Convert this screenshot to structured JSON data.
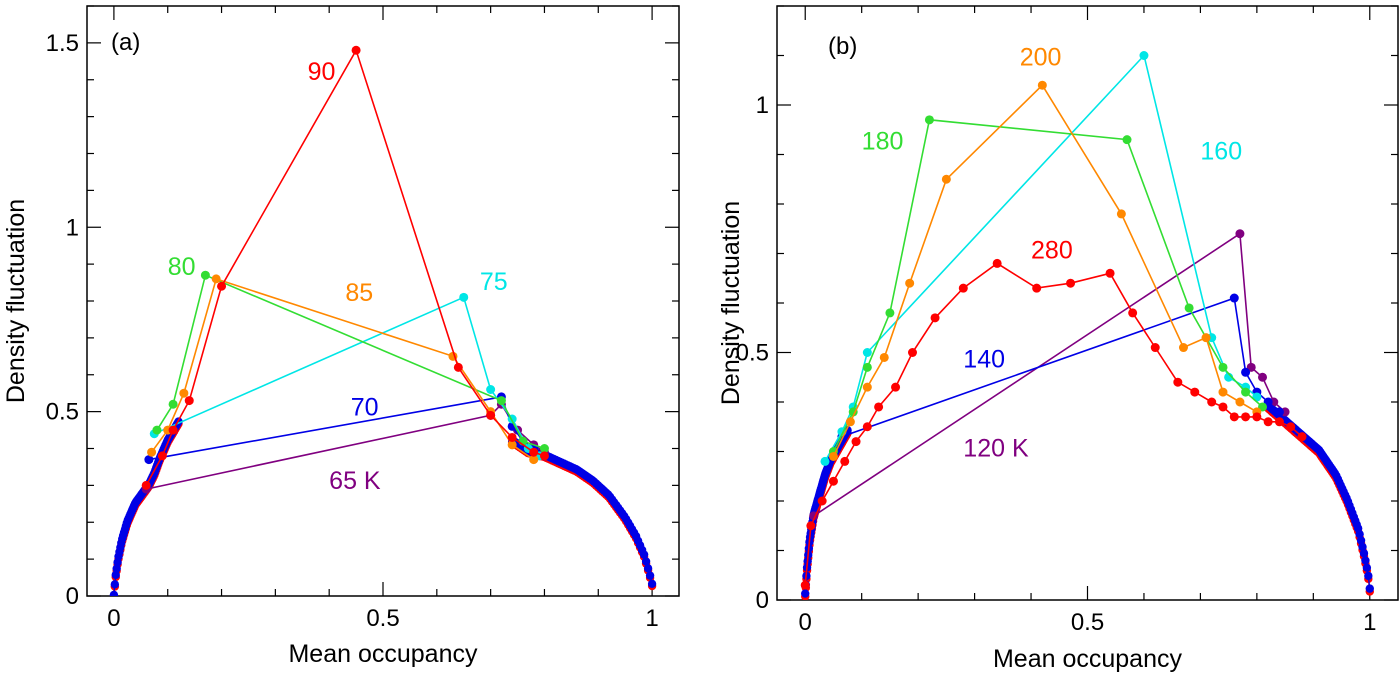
{
  "chart_data": [
    {
      "type": "line",
      "panel_label": "(a)",
      "xlabel": "Mean occupancy",
      "ylabel": "Density fluctuation",
      "xlim": [
        -0.05,
        1.05
      ],
      "ylim": [
        0,
        1.6
      ],
      "xticks": [
        0,
        0.5,
        1
      ],
      "xtick_labels": [
        "0",
        "0.5",
        "1"
      ],
      "yticks": [
        0,
        0.5,
        1,
        1.5
      ],
      "ytick_labels": [
        "0",
        "0.5",
        "1",
        "1.5"
      ],
      "series": [
        {
          "name": "65 K",
          "color": "#800080",
          "points": [
            [
              0.06,
              0.29
            ],
            [
              0.7,
              0.49
            ],
            [
              0.72,
              0.52
            ],
            [
              0.75,
              0.45
            ],
            [
              0.78,
              0.41
            ],
            [
              0.8,
              0.39
            ]
          ]
        },
        {
          "name": "70",
          "color": "#0000e6",
          "points": [
            [
              0.065,
              0.37
            ],
            [
              0.72,
              0.54
            ],
            [
              0.74,
              0.46
            ],
            [
              0.76,
              0.42
            ],
            [
              0.78,
              0.4
            ],
            [
              0.8,
              0.38
            ]
          ]
        },
        {
          "name": "75",
          "color": "#00e6e6",
          "points": [
            [
              0.075,
              0.44
            ],
            [
              0.65,
              0.81
            ],
            [
              0.7,
              0.56
            ],
            [
              0.74,
              0.48
            ],
            [
              0.77,
              0.4
            ],
            [
              0.79,
              0.38
            ]
          ]
        },
        {
          "name": "80",
          "color": "#33dd33",
          "points": [
            [
              0.08,
              0.45
            ],
            [
              0.11,
              0.52
            ],
            [
              0.17,
              0.87
            ],
            [
              0.72,
              0.53
            ],
            [
              0.76,
              0.42
            ],
            [
              0.8,
              0.4
            ]
          ]
        },
        {
          "name": "85",
          "color": "#ff8800",
          "points": [
            [
              0.07,
              0.39
            ],
            [
              0.1,
              0.45
            ],
            [
              0.13,
              0.55
            ],
            [
              0.19,
              0.86
            ],
            [
              0.63,
              0.65
            ],
            [
              0.7,
              0.5
            ],
            [
              0.74,
              0.41
            ],
            [
              0.78,
              0.37
            ]
          ]
        },
        {
          "name": "90",
          "color": "#ff0000",
          "points": [
            [
              0.06,
              0.3
            ],
            [
              0.09,
              0.38
            ],
            [
              0.11,
              0.45
            ],
            [
              0.14,
              0.53
            ],
            [
              0.2,
              0.84
            ],
            [
              0.45,
              1.48
            ],
            [
              0.64,
              0.62
            ],
            [
              0.7,
              0.49
            ],
            [
              0.74,
              0.43
            ],
            [
              0.78,
              0.39
            ],
            [
              0.8,
              0.38
            ]
          ]
        }
      ],
      "labels": [
        {
          "text": "90",
          "color": "#ff0000",
          "x": 0.36,
          "y": 1.4
        },
        {
          "text": "80",
          "color": "#33dd33",
          "x": 0.1,
          "y": 0.87
        },
        {
          "text": "85",
          "color": "#ff8800",
          "x": 0.43,
          "y": 0.8
        },
        {
          "text": "75",
          "color": "#00e6e6",
          "x": 0.68,
          "y": 0.83
        },
        {
          "text": "70",
          "color": "#0000e6",
          "x": 0.44,
          "y": 0.49
        },
        {
          "text": "65 K",
          "color": "#800080",
          "x": 0.4,
          "y": 0.29
        }
      ]
    },
    {
      "type": "line",
      "panel_label": "(b)",
      "xlabel": "Mean occupancy",
      "ylabel": "Density fluctuation",
      "xlim": [
        -0.05,
        1.05
      ],
      "ylim": [
        0,
        1.2
      ],
      "xticks": [
        0,
        0.5,
        1
      ],
      "xtick_labels": [
        "0",
        "0.5",
        "1"
      ],
      "yticks": [
        0,
        0.5,
        1
      ],
      "ytick_labels": [
        "0",
        "0.5",
        "1"
      ],
      "series": [
        {
          "name": "120 K",
          "color": "#800080",
          "points": [
            [
              0.015,
              0.17
            ],
            [
              0.77,
              0.74
            ],
            [
              0.79,
              0.47
            ],
            [
              0.81,
              0.45
            ],
            [
              0.83,
              0.4
            ],
            [
              0.85,
              0.38
            ]
          ]
        },
        {
          "name": "140",
          "color": "#0000e6",
          "points": [
            [
              0.065,
              0.33
            ],
            [
              0.76,
              0.61
            ],
            [
              0.78,
              0.46
            ],
            [
              0.8,
              0.42
            ],
            [
              0.82,
              0.4
            ],
            [
              0.84,
              0.38
            ]
          ]
        },
        {
          "name": "160",
          "color": "#00e6e6",
          "points": [
            [
              0.035,
              0.28
            ],
            [
              0.065,
              0.34
            ],
            [
              0.085,
              0.39
            ],
            [
              0.11,
              0.5
            ],
            [
              0.6,
              1.1
            ],
            [
              0.72,
              0.53
            ],
            [
              0.75,
              0.45
            ],
            [
              0.78,
              0.43
            ],
            [
              0.8,
              0.41
            ]
          ]
        },
        {
          "name": "180",
          "color": "#33dd33",
          "points": [
            [
              0.05,
              0.3
            ],
            [
              0.085,
              0.38
            ],
            [
              0.11,
              0.47
            ],
            [
              0.15,
              0.58
            ],
            [
              0.22,
              0.97
            ],
            [
              0.57,
              0.93
            ],
            [
              0.68,
              0.59
            ],
            [
              0.74,
              0.47
            ],
            [
              0.78,
              0.42
            ],
            [
              0.81,
              0.39
            ]
          ]
        },
        {
          "name": "200",
          "color": "#ff8800",
          "points": [
            [
              0.05,
              0.29
            ],
            [
              0.08,
              0.36
            ],
            [
              0.11,
              0.43
            ],
            [
              0.14,
              0.49
            ],
            [
              0.185,
              0.64
            ],
            [
              0.25,
              0.85
            ],
            [
              0.42,
              1.04
            ],
            [
              0.56,
              0.78
            ],
            [
              0.67,
              0.51
            ],
            [
              0.71,
              0.53
            ],
            [
              0.74,
              0.42
            ],
            [
              0.77,
              0.4
            ],
            [
              0.8,
              0.38
            ]
          ]
        },
        {
          "name": "280",
          "color": "#ff0000",
          "points": [
            [
              0.0,
              0.03
            ],
            [
              0.01,
              0.15
            ],
            [
              0.03,
              0.2
            ],
            [
              0.05,
              0.24
            ],
            [
              0.07,
              0.28
            ],
            [
              0.09,
              0.32
            ],
            [
              0.11,
              0.35
            ],
            [
              0.13,
              0.39
            ],
            [
              0.16,
              0.43
            ],
            [
              0.19,
              0.5
            ],
            [
              0.23,
              0.57
            ],
            [
              0.28,
              0.63
            ],
            [
              0.34,
              0.68
            ],
            [
              0.41,
              0.63
            ],
            [
              0.47,
              0.64
            ],
            [
              0.54,
              0.66
            ],
            [
              0.58,
              0.58
            ],
            [
              0.62,
              0.51
            ],
            [
              0.66,
              0.44
            ],
            [
              0.69,
              0.42
            ],
            [
              0.72,
              0.4
            ],
            [
              0.74,
              0.39
            ],
            [
              0.76,
              0.37
            ],
            [
              0.78,
              0.37
            ],
            [
              0.8,
              0.37
            ],
            [
              0.82,
              0.36
            ],
            [
              0.84,
              0.36
            ],
            [
              0.86,
              0.35
            ],
            [
              0.88,
              0.33
            ]
          ]
        }
      ],
      "labels": [
        {
          "text": "200",
          "color": "#ff8800",
          "x": 0.38,
          "y": 1.08
        },
        {
          "text": "180",
          "color": "#33dd33",
          "x": 0.1,
          "y": 0.91
        },
        {
          "text": "160",
          "color": "#00e6e6",
          "x": 0.7,
          "y": 0.89
        },
        {
          "text": "280",
          "color": "#ff0000",
          "x": 0.4,
          "y": 0.69
        },
        {
          "text": "140",
          "color": "#0000e6",
          "x": 0.28,
          "y": 0.47
        },
        {
          "text": "120 K",
          "color": "#800080",
          "x": 0.28,
          "y": 0.29
        }
      ]
    }
  ]
}
